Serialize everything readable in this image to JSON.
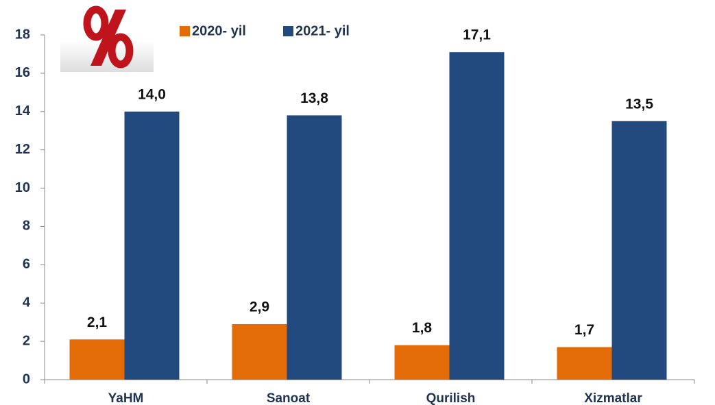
{
  "chart_data": {
    "type": "bar",
    "categories": [
      "YaHM",
      "Sanoat",
      "Qurilish",
      "Xizmatlar"
    ],
    "series": [
      {
        "name": "2020- yil",
        "color": "#e36c09",
        "values": [
          2.1,
          2.9,
          1.8,
          1.7
        ],
        "value_labels": [
          "2,1",
          "2,9",
          "1,8",
          "1,7"
        ]
      },
      {
        "name": "2021- yil",
        "color": "#234a7e",
        "values": [
          14.0,
          13.8,
          17.1,
          13.5
        ],
        "value_labels": [
          "14,0",
          "13,8",
          "17,1",
          "13,5"
        ]
      }
    ],
    "ylim": [
      0,
      18
    ],
    "yticks": [
      0,
      2,
      4,
      6,
      8,
      10,
      12,
      14,
      16,
      18
    ],
    "grid": false
  }
}
